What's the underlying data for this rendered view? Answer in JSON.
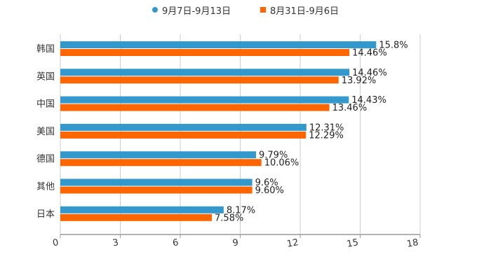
{
  "legend": {
    "series_a": "9月7日-9月13日",
    "series_b": "8月31日-9月6日"
  },
  "colors": {
    "series_a": "#3399CC",
    "series_b": "#FF6600",
    "grid": "#CCCCCC",
    "axis": "#999999"
  },
  "chart_data": {
    "type": "bar",
    "orientation": "horizontal",
    "title": "",
    "xlabel": "",
    "ylabel": "",
    "categories": [
      "韩国",
      "英国",
      "中国",
      "美国",
      "德国",
      "其他",
      "日本"
    ],
    "series": [
      {
        "name": "9月7日-9月13日",
        "values": [
          15.8,
          14.46,
          14.43,
          12.31,
          9.79,
          9.6,
          8.17
        ],
        "labels": [
          "15.8%",
          "14.46%",
          "14.43%",
          "12.31%",
          "9.79%",
          "9.6%",
          "8.17%"
        ]
      },
      {
        "name": "8月31日-9月6日",
        "values": [
          14.46,
          13.92,
          13.46,
          12.29,
          10.06,
          9.6,
          7.58
        ],
        "labels": [
          "14.46%",
          "13.92%",
          "13.46%",
          "12.29%",
          "10.06%",
          "9.60%",
          "7.58%"
        ]
      }
    ],
    "xlim": [
      0,
      18
    ],
    "xticks": [
      "0",
      "3",
      "6",
      "9",
      "12",
      "15",
      "18"
    ],
    "grid": true,
    "legend_position": "top"
  }
}
